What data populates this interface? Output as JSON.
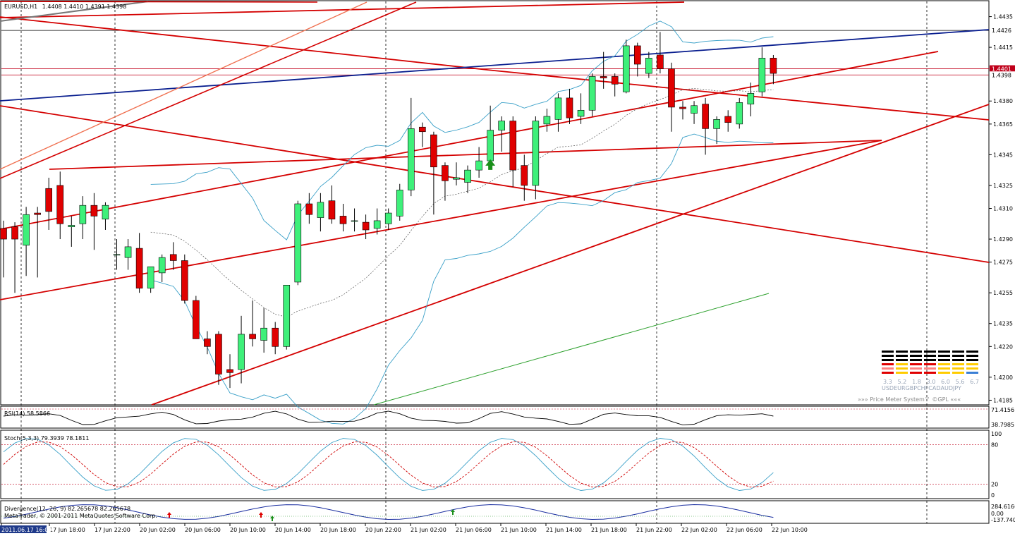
{
  "header": {
    "symbol_tf": "EURUSD,H1",
    "ohlc": "1.4408 1.4410 1.4391 1.4398"
  },
  "price_tags": {
    "current": "1.4398",
    "line_a": "1.4426",
    "line_b": "1.4401"
  },
  "indicators": {
    "rsi": {
      "label": "RSI(14) 58.5866",
      "scale": [
        "71.4156",
        "38.7985"
      ]
    },
    "stoch": {
      "label": "Stoch(5,3,3) 79.3939 78.1811",
      "scale": [
        "100",
        "80",
        "20",
        "0"
      ]
    },
    "divergence": {
      "label": "Divergence(12, 26, 9) 82.265678 82.265678",
      "scale": [
        "284.6166",
        "0.00",
        "-137.7400"
      ]
    }
  },
  "copyright": "MetaTrader, © 2001-2011 MetaQuotes Software Corp.",
  "price_meter": {
    "currencies": [
      "USD",
      "EUR",
      "GBP",
      "CHF",
      "CAD",
      "AUD",
      "JPY"
    ],
    "values": [
      "3.3",
      "5.2",
      "1.8",
      "3.0",
      "6.0",
      "5.6",
      "6.7"
    ],
    "caption": "»»» Price Meter System™ ©GPL «««"
  },
  "chart_data": {
    "type": "candlestick",
    "title": "EURUSD,H1 1.4408 1.4410 1.4391 1.4398",
    "y_axis_ticks": [
      "1.4435",
      "1.4415",
      "1.4380",
      "1.4365",
      "1.4345",
      "1.4325",
      "1.4310",
      "1.4290",
      "1.4275",
      "1.4255",
      "1.4235",
      "1.4220",
      "1.4200",
      "1.4185"
    ],
    "ylim": [
      1.4182,
      1.4444
    ],
    "x_axis_ticks": [
      "2011.06.17 16:00",
      "17 Jun 18:00",
      "17 Jun 22:00",
      "20 Jun 02:00",
      "20 Jun 06:00",
      "20 Jun 10:00",
      "20 Jun 14:00",
      "20 Jun 18:00",
      "20 Jun 22:00",
      "21 Jun 02:00",
      "21 Jun 06:00",
      "21 Jun 10:00",
      "21 Jun 14:00",
      "21 Jun 18:00",
      "21 Jun 22:00",
      "22 Jun 02:00",
      "22 Jun 06:00",
      "22 Jun 10:00"
    ],
    "candles": [
      {
        "o": 1.4297,
        "h": 1.4302,
        "l": 1.4265,
        "c": 1.429
      },
      {
        "o": 1.4298,
        "h": 1.4301,
        "l": 1.4255,
        "c": 1.429
      },
      {
        "o": 1.4286,
        "h": 1.4311,
        "l": 1.4266,
        "c": 1.4306
      },
      {
        "o": 1.4307,
        "h": 1.4311,
        "l": 1.4265,
        "c": 1.4306
      },
      {
        "o": 1.4323,
        "h": 1.433,
        "l": 1.4296,
        "c": 1.4308
      },
      {
        "o": 1.4325,
        "h": 1.4334,
        "l": 1.429,
        "c": 1.43
      },
      {
        "o": 1.4298,
        "h": 1.4305,
        "l": 1.4285,
        "c": 1.4299
      },
      {
        "o": 1.43,
        "h": 1.4318,
        "l": 1.429,
        "c": 1.4312
      },
      {
        "o": 1.4312,
        "h": 1.432,
        "l": 1.4283,
        "c": 1.4305
      },
      {
        "o": 1.4303,
        "h": 1.4314,
        "l": 1.4296,
        "c": 1.4312
      },
      {
        "o": 1.428,
        "h": 1.429,
        "l": 1.427,
        "c": 1.428
      },
      {
        "o": 1.4278,
        "h": 1.429,
        "l": 1.427,
        "c": 1.4285
      },
      {
        "o": 1.4284,
        "h": 1.4294,
        "l": 1.4255,
        "c": 1.4258
      },
      {
        "o": 1.4258,
        "h": 1.4272,
        "l": 1.4255,
        "c": 1.4272
      },
      {
        "o": 1.4268,
        "h": 1.428,
        "l": 1.4262,
        "c": 1.4278
      },
      {
        "o": 1.428,
        "h": 1.4288,
        "l": 1.427,
        "c": 1.4276
      },
      {
        "o": 1.4276,
        "h": 1.428,
        "l": 1.4248,
        "c": 1.425
      },
      {
        "o": 1.425,
        "h": 1.4253,
        "l": 1.4225,
        "c": 1.4225
      },
      {
        "o": 1.4225,
        "h": 1.423,
        "l": 1.4215,
        "c": 1.422
      },
      {
        "o": 1.4228,
        "h": 1.423,
        "l": 1.4195,
        "c": 1.4202
      },
      {
        "o": 1.4205,
        "h": 1.4215,
        "l": 1.4193,
        "c": 1.4203
      },
      {
        "o": 1.4205,
        "h": 1.424,
        "l": 1.4196,
        "c": 1.4228
      },
      {
        "o": 1.4228,
        "h": 1.425,
        "l": 1.422,
        "c": 1.4225
      },
      {
        "o": 1.4224,
        "h": 1.4245,
        "l": 1.4216,
        "c": 1.4232
      },
      {
        "o": 1.4232,
        "h": 1.4236,
        "l": 1.4215,
        "c": 1.422
      },
      {
        "o": 1.422,
        "h": 1.426,
        "l": 1.4218,
        "c": 1.426
      },
      {
        "o": 1.4262,
        "h": 1.4315,
        "l": 1.426,
        "c": 1.4313
      },
      {
        "o": 1.4313,
        "h": 1.432,
        "l": 1.43,
        "c": 1.4306
      },
      {
        "o": 1.4304,
        "h": 1.432,
        "l": 1.4295,
        "c": 1.4314
      },
      {
        "o": 1.4315,
        "h": 1.4325,
        "l": 1.43,
        "c": 1.4303
      },
      {
        "o": 1.4305,
        "h": 1.4313,
        "l": 1.4295,
        "c": 1.43
      },
      {
        "o": 1.4302,
        "h": 1.431,
        "l": 1.4295,
        "c": 1.4302
      },
      {
        "o": 1.4301,
        "h": 1.4306,
        "l": 1.429,
        "c": 1.4296
      },
      {
        "o": 1.4297,
        "h": 1.431,
        "l": 1.4293,
        "c": 1.4302
      },
      {
        "o": 1.43,
        "h": 1.431,
        "l": 1.4296,
        "c": 1.4307
      },
      {
        "o": 1.4305,
        "h": 1.4326,
        "l": 1.4302,
        "c": 1.4322
      },
      {
        "o": 1.4322,
        "h": 1.4382,
        "l": 1.4318,
        "c": 1.4362
      },
      {
        "o": 1.4363,
        "h": 1.4366,
        "l": 1.435,
        "c": 1.436
      },
      {
        "o": 1.4358,
        "h": 1.436,
        "l": 1.4306,
        "c": 1.4337
      },
      {
        "o": 1.4338,
        "h": 1.434,
        "l": 1.4315,
        "c": 1.4328
      },
      {
        "o": 1.4329,
        "h": 1.434,
        "l": 1.4325,
        "c": 1.433
      },
      {
        "o": 1.4327,
        "h": 1.4338,
        "l": 1.432,
        "c": 1.4335
      },
      {
        "o": 1.4335,
        "h": 1.435,
        "l": 1.433,
        "c": 1.4341
      },
      {
        "o": 1.4341,
        "h": 1.4377,
        "l": 1.4337,
        "c": 1.4361
      },
      {
        "o": 1.4361,
        "h": 1.437,
        "l": 1.4347,
        "c": 1.4367
      },
      {
        "o": 1.4367,
        "h": 1.437,
        "l": 1.4324,
        "c": 1.4335
      },
      {
        "o": 1.4338,
        "h": 1.4345,
        "l": 1.4315,
        "c": 1.4325
      },
      {
        "o": 1.4325,
        "h": 1.437,
        "l": 1.4316,
        "c": 1.4367
      },
      {
        "o": 1.4365,
        "h": 1.4375,
        "l": 1.436,
        "c": 1.437
      },
      {
        "o": 1.4368,
        "h": 1.4385,
        "l": 1.436,
        "c": 1.4382
      },
      {
        "o": 1.4382,
        "h": 1.4388,
        "l": 1.4365,
        "c": 1.4369
      },
      {
        "o": 1.437,
        "h": 1.4385,
        "l": 1.4365,
        "c": 1.4374
      },
      {
        "o": 1.4374,
        "h": 1.4398,
        "l": 1.437,
        "c": 1.4396
      },
      {
        "o": 1.4396,
        "h": 1.4412,
        "l": 1.4388,
        "c": 1.4395
      },
      {
        "o": 1.4396,
        "h": 1.4398,
        "l": 1.4383,
        "c": 1.4391
      },
      {
        "o": 1.4386,
        "h": 1.442,
        "l": 1.4385,
        "c": 1.4416
      },
      {
        "o": 1.4416,
        "h": 1.4418,
        "l": 1.4396,
        "c": 1.4404
      },
      {
        "o": 1.4398,
        "h": 1.4412,
        "l": 1.4395,
        "c": 1.4408
      },
      {
        "o": 1.441,
        "h": 1.4425,
        "l": 1.4398,
        "c": 1.4401
      },
      {
        "o": 1.4401,
        "h": 1.4405,
        "l": 1.436,
        "c": 1.4376
      },
      {
        "o": 1.4376,
        "h": 1.438,
        "l": 1.4368,
        "c": 1.4375
      },
      {
        "o": 1.4372,
        "h": 1.438,
        "l": 1.4365,
        "c": 1.4377
      },
      {
        "o": 1.4378,
        "h": 1.4382,
        "l": 1.4345,
        "c": 1.4362
      },
      {
        "o": 1.4362,
        "h": 1.437,
        "l": 1.4352,
        "c": 1.4368
      },
      {
        "o": 1.437,
        "h": 1.4374,
        "l": 1.436,
        "c": 1.4366
      },
      {
        "o": 1.4365,
        "h": 1.4382,
        "l": 1.4362,
        "c": 1.4379
      },
      {
        "o": 1.4378,
        "h": 1.4392,
        "l": 1.437,
        "c": 1.4385
      },
      {
        "o": 1.4386,
        "h": 1.4415,
        "l": 1.4383,
        "c": 1.4408
      },
      {
        "o": 1.4408,
        "h": 1.441,
        "l": 1.4391,
        "c": 1.4398
      }
    ]
  }
}
